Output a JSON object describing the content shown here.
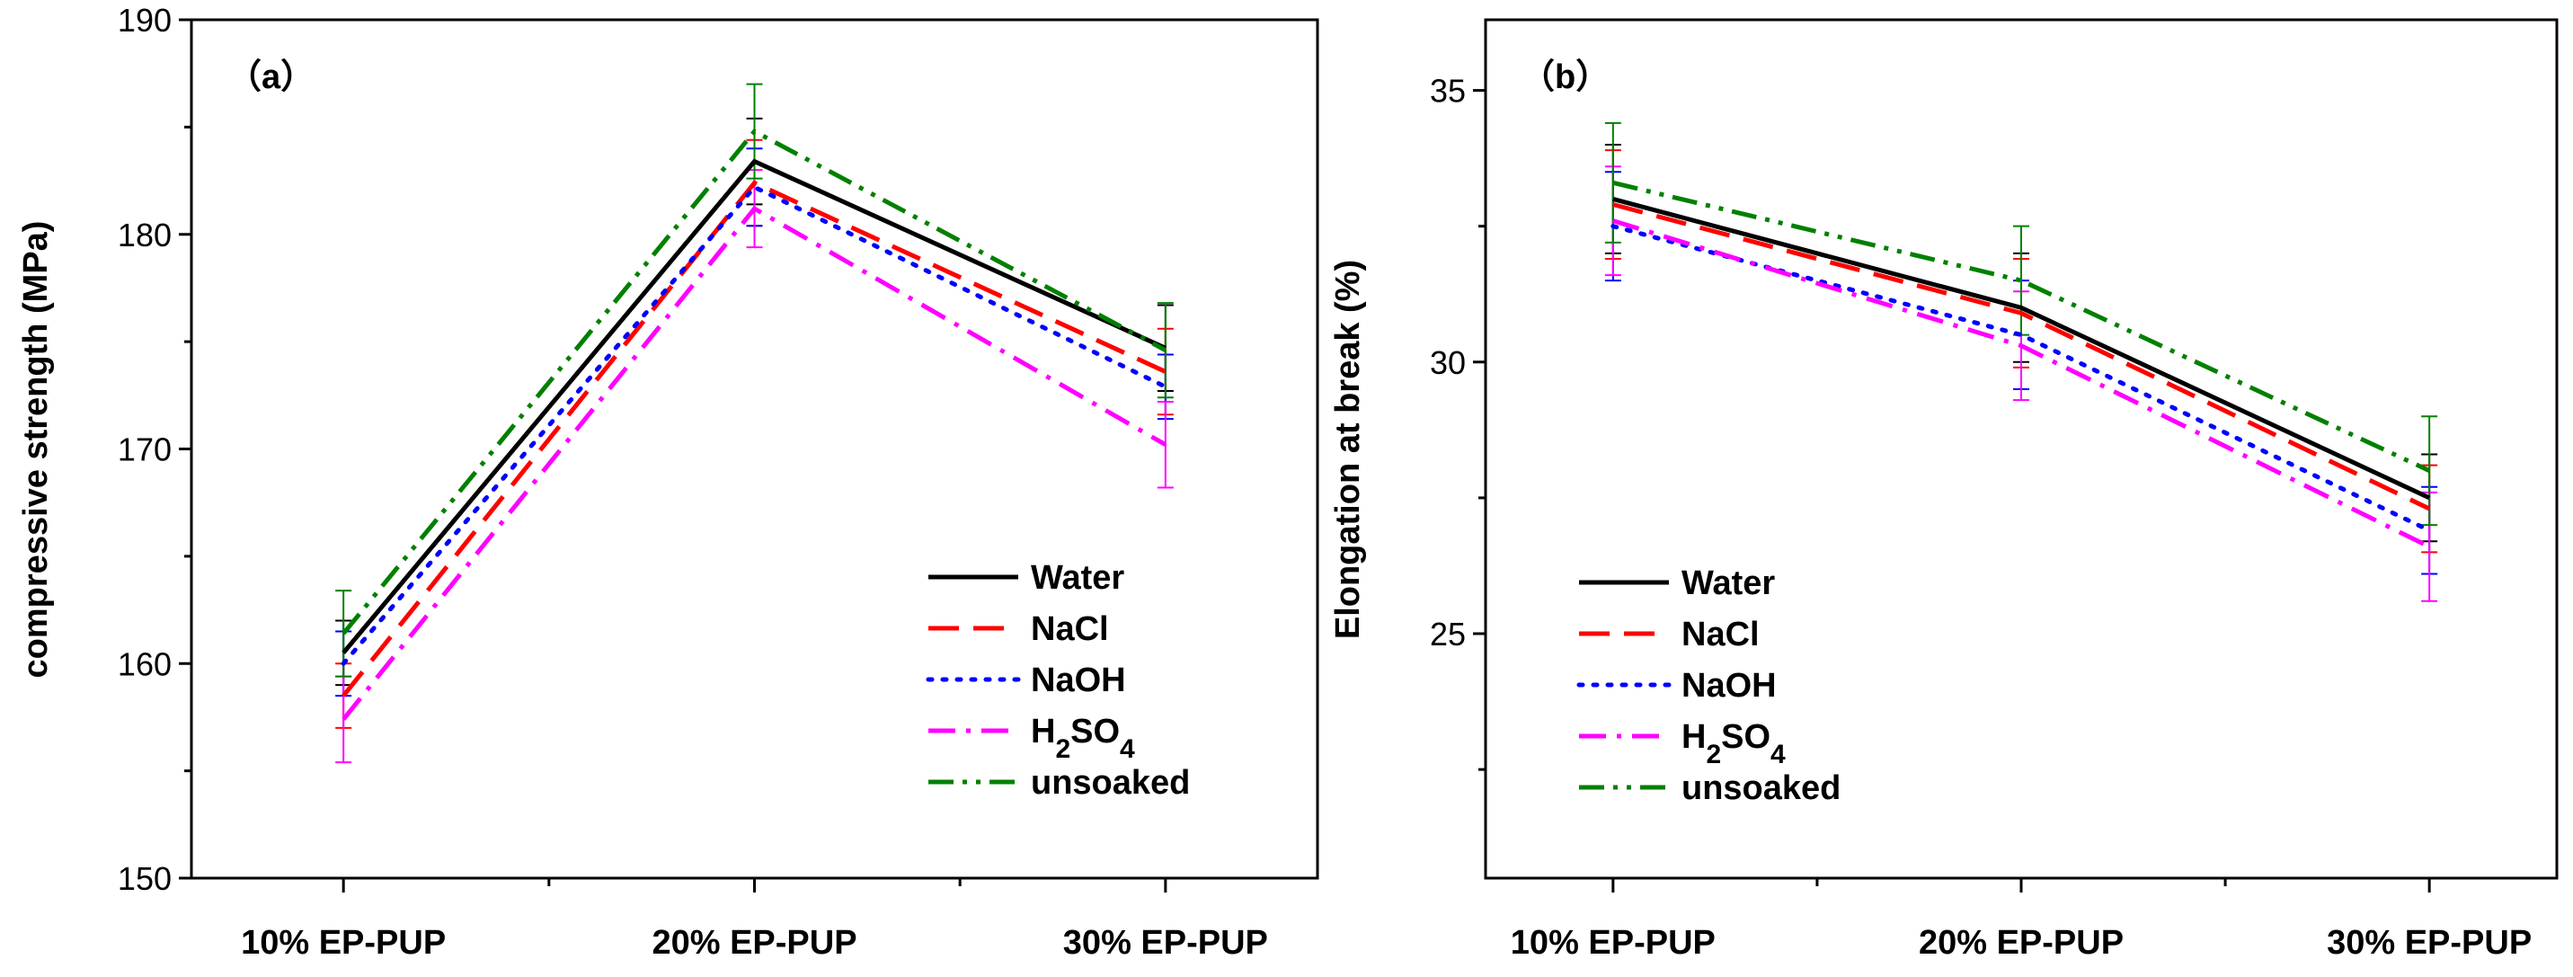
{
  "chart_data": [
    {
      "type": "line",
      "panel_label": "（a）",
      "title": "",
      "xlabel": "",
      "ylabel": "compressive strength (MPa)",
      "categories": [
        "10% EP-PUP",
        "20% EP-PUP",
        "30% EP-PUP"
      ],
      "ylim": [
        150,
        190
      ],
      "yticks": [
        150,
        160,
        170,
        180,
        190
      ],
      "legend_position": "bottom-right",
      "series": [
        {
          "name": "Water",
          "values": [
            160.5,
            183.4,
            174.7
          ],
          "errors": [
            1.5,
            2.0,
            2.0
          ],
          "color": "#000000",
          "dash": "solid"
        },
        {
          "name": "NaCl",
          "values": [
            158.5,
            182.4,
            173.6
          ],
          "errors": [
            1.5,
            2.0,
            2.0
          ],
          "color": "#ff0000",
          "dash": "dash"
        },
        {
          "name": "NaOH",
          "values": [
            160.0,
            182.2,
            172.9
          ],
          "errors": [
            1.5,
            1.8,
            1.5
          ],
          "color": "#0000ff",
          "dash": "dot"
        },
        {
          "name": "H2SO4",
          "values": [
            157.4,
            181.2,
            170.2
          ],
          "errors": [
            2.0,
            1.8,
            2.0
          ],
          "color": "#ff00ff",
          "dash": "dashdot"
        },
        {
          "name": "unsoaked",
          "values": [
            161.4,
            184.8,
            174.6
          ],
          "errors": [
            2.0,
            2.2,
            2.2
          ],
          "color": "#008000",
          "dash": "dashdotdot"
        }
      ]
    },
    {
      "type": "line",
      "panel_label": "（b）",
      "title": "",
      "xlabel": "",
      "ylabel": "Elongation at break (%)",
      "categories": [
        "10% EP-PUP",
        "20% EP-PUP",
        "30% EP-PUP"
      ],
      "ylim": [
        20.5,
        36.3
      ],
      "yticks": [
        25,
        30,
        35
      ],
      "legend_position": "bottom-left",
      "series": [
        {
          "name": "Water",
          "values": [
            33.0,
            31.0,
            27.5
          ],
          "errors": [
            1.0,
            1.0,
            0.8
          ],
          "color": "#000000",
          "dash": "solid"
        },
        {
          "name": "NaCl",
          "values": [
            32.9,
            30.9,
            27.3
          ],
          "errors": [
            1.0,
            1.0,
            0.8
          ],
          "color": "#ff0000",
          "dash": "dash"
        },
        {
          "name": "NaOH",
          "values": [
            32.5,
            30.5,
            26.9
          ],
          "errors": [
            1.0,
            1.0,
            0.8
          ],
          "color": "#0000ff",
          "dash": "dot"
        },
        {
          "name": "H2SO4",
          "values": [
            32.6,
            30.3,
            26.6
          ],
          "errors": [
            1.0,
            1.0,
            1.0
          ],
          "color": "#ff00ff",
          "dash": "dashdot"
        },
        {
          "name": "unsoaked",
          "values": [
            33.3,
            31.5,
            28.0
          ],
          "errors": [
            1.1,
            1.0,
            1.0
          ],
          "color": "#008000",
          "dash": "dashdotdot"
        }
      ]
    }
  ]
}
